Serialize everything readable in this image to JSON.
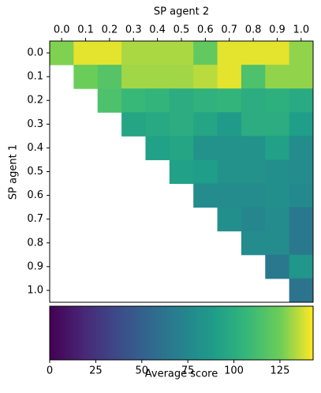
{
  "chart_data": {
    "type": "heatmap",
    "x_label": "SP agent 2",
    "y_label": "SP agent 1",
    "categories_x": [
      "0.0",
      "0.1",
      "0.2",
      "0.3",
      "0.4",
      "0.5",
      "0.6",
      "0.7",
      "0.8",
      "0.9",
      "1.0"
    ],
    "categories_y": [
      "0.0",
      "0.1",
      "0.2",
      "0.3",
      "0.4",
      "0.5",
      "0.6",
      "0.7",
      "0.8",
      "0.9",
      "1.0"
    ],
    "z": [
      [
        128,
        140,
        140,
        133,
        133,
        133,
        122,
        140,
        140,
        140,
        130
      ],
      [
        null,
        125,
        118,
        132,
        132,
        132,
        135,
        140,
        115,
        130,
        130
      ],
      [
        null,
        null,
        115,
        108,
        105,
        100,
        103,
        105,
        100,
        102,
        98
      ],
      [
        null,
        null,
        null,
        95,
        97,
        100,
        95,
        88,
        100,
        100,
        90
      ],
      [
        null,
        null,
        null,
        null,
        92,
        95,
        82,
        82,
        82,
        92,
        78
      ],
      [
        null,
        null,
        null,
        null,
        null,
        92,
        90,
        82,
        82,
        80,
        78
      ],
      [
        null,
        null,
        null,
        null,
        null,
        null,
        78,
        78,
        78,
        80,
        76
      ],
      [
        null,
        null,
        null,
        null,
        null,
        null,
        null,
        80,
        74,
        78,
        65
      ],
      [
        null,
        null,
        null,
        null,
        null,
        null,
        null,
        null,
        78,
        78,
        65
      ],
      [
        null,
        null,
        null,
        null,
        null,
        null,
        null,
        null,
        null,
        65,
        85
      ],
      [
        null,
        null,
        null,
        null,
        null,
        null,
        null,
        null,
        null,
        null,
        62
      ]
    ],
    "colormap": "viridis",
    "clim": [
      0,
      143
    ],
    "cticks": [
      0,
      25,
      50,
      75,
      100,
      125
    ],
    "colorbar_label": "Average score"
  }
}
